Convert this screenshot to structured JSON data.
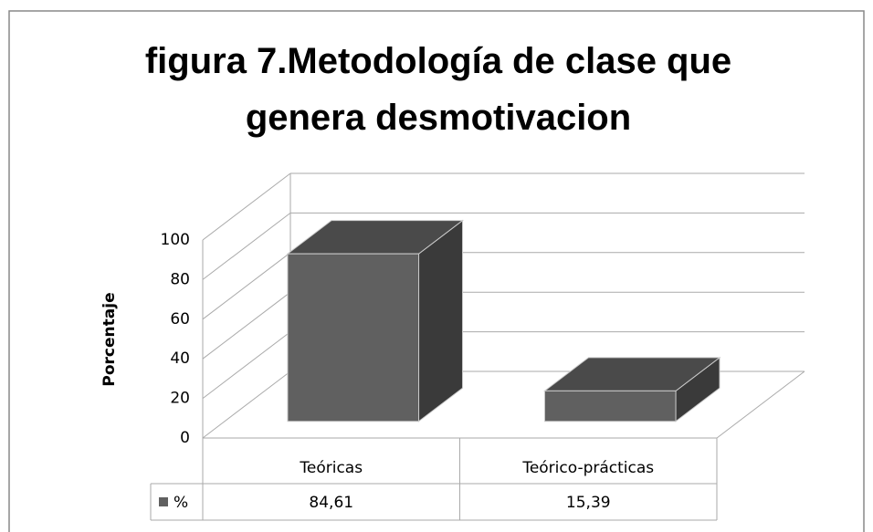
{
  "chart_data": {
    "type": "bar3d",
    "title": "figura 7.Metodología de clase que genera desmotivacion",
    "ylabel": "Porcentaje",
    "categories": [
      "Teóricas",
      "Teórico-prácticas"
    ],
    "series": [
      {
        "name": "%",
        "color": "#606060",
        "values": [
          84.61,
          15.39
        ],
        "value_labels": [
          "84,61",
          "15,39"
        ]
      }
    ],
    "ylim": [
      0,
      100
    ],
    "yticks": [
      0,
      20,
      40,
      60,
      80,
      100
    ],
    "grid": true
  }
}
